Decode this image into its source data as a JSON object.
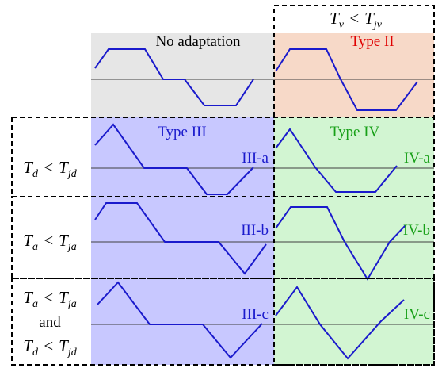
{
  "header": {
    "condition_lhs": "T",
    "lhs_sub": "v",
    "op": "<",
    "rhs": "T",
    "rhs_sub": "jv"
  },
  "cells": {
    "no_adaptation": "No adaptation",
    "type2": "Type II",
    "type3": "Type III",
    "type4": "Type IV",
    "iii_a": "III-a",
    "iii_b": "III-b",
    "iii_c": "III-c",
    "iv_a": "IV-a",
    "iv_b": "IV-b",
    "iv_c": "IV-c"
  },
  "rows": {
    "row_a": {
      "lhs": "T",
      "lhs_sub": "d",
      "op": "<",
      "rhs": "T",
      "rhs_sub": "jd"
    },
    "row_b": {
      "lhs": "T",
      "lhs_sub": "a",
      "op": "<",
      "rhs": "T",
      "rhs_sub": "ja"
    },
    "row_c": {
      "line1": {
        "lhs": "T",
        "lhs_sub": "a",
        "op": "<",
        "rhs": "T",
        "rhs_sub": "ja"
      },
      "and": "and",
      "line2": {
        "lhs": "T",
        "lhs_sub": "d",
        "op": "<",
        "rhs": "T",
        "rhs_sub": "jd"
      }
    }
  },
  "colors": {
    "gray": "#e6e6e6",
    "orange": "#f7d9c8",
    "blue": "#c8c8ff",
    "green": "#d2f5d2",
    "curve": "#1a1acc",
    "type2_text": "#e00000",
    "type3_text": "#1a1acc",
    "type4_text": "#18a018"
  }
}
